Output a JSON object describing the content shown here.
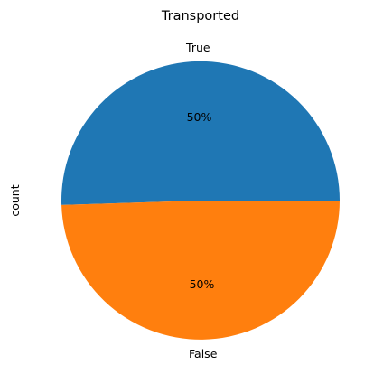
{
  "chart_data": {
    "type": "pie",
    "title": "Transported",
    "ylabel": "count",
    "labels": [
      "True",
      "False"
    ],
    "values": [
      50.5,
      49.5
    ],
    "percent_labels": [
      "50%",
      "50%"
    ],
    "colors": [
      "#1f77b4",
      "#ff7f0e"
    ],
    "start_angle_deg": 0,
    "direction": "counterclockwise"
  }
}
